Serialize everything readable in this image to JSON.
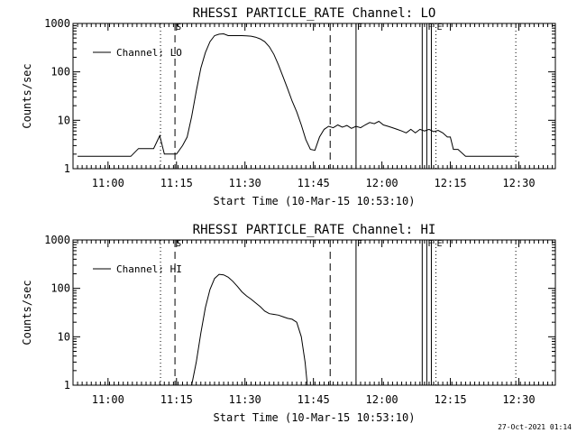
{
  "footer_timestamp": "27-Oct-2021 01:14",
  "chart_data": [
    {
      "type": "line",
      "title": "RHESSI PARTICLE_RATE Channel: LO",
      "xlabel": "Start Time (10-Mar-15 10:53:10)",
      "ylabel": "Counts/sec",
      "yscale": "log",
      "ylim": [
        1,
        1000
      ],
      "xlim_minutes": [
        -60,
        1430
      ],
      "x_unit": "seconds since 10:53:10",
      "x_ticks": [
        {
          "t": 400,
          "label": "11:00"
        },
        {
          "t": 1300,
          "label": "11:15"
        },
        {
          "t": 2200,
          "label": "11:30"
        },
        {
          "t": 3100,
          "label": "11:45"
        },
        {
          "t": 4000,
          "label": "12:00"
        },
        {
          "t": 4900,
          "label": "12:15"
        },
        {
          "t": 5800,
          "label": "12:30"
        }
      ],
      "y_ticks": [
        {
          "v": 1,
          "label": "1"
        },
        {
          "v": 10,
          "label": "10"
        },
        {
          "v": 100,
          "label": "100"
        },
        {
          "v": 1000,
          "label": "1000"
        }
      ],
      "legend": {
        "label": "Channel: LO",
        "position": "top-left"
      },
      "markers": [
        {
          "t": 1090,
          "style": "dotted",
          "label": ""
        },
        {
          "t": 1280,
          "style": "dashed",
          "label": "S"
        },
        {
          "t": 3320,
          "style": "dashed",
          "label": ""
        },
        {
          "t": 3660,
          "style": "solid",
          "label": "F"
        },
        {
          "t": 4530,
          "style": "solid",
          "label": ""
        },
        {
          "t": 4590,
          "style": "solid",
          "label": "F"
        },
        {
          "t": 4650,
          "style": "solid",
          "label": ""
        },
        {
          "t": 4710,
          "style": "dotted",
          "label": "E"
        },
        {
          "t": 5760,
          "style": "dotted",
          "label": ""
        }
      ],
      "series": [
        {
          "name": "Channel: LO",
          "points": [
            [
              0,
              1.8
            ],
            [
              100,
              1.8
            ],
            [
              200,
              1.8
            ],
            [
              300,
              1.8
            ],
            [
              400,
              1.8
            ],
            [
              500,
              1.8
            ],
            [
              600,
              1.8
            ],
            [
              700,
              1.8
            ],
            [
              800,
              2.6
            ],
            [
              900,
              2.6
            ],
            [
              1000,
              2.6
            ],
            [
              1080,
              4.8
            ],
            [
              1140,
              2.0
            ],
            [
              1200,
              2.0
            ],
            [
              1300,
              2.0
            ],
            [
              1380,
              3.0
            ],
            [
              1440,
              4.5
            ],
            [
              1500,
              12
            ],
            [
              1560,
              40
            ],
            [
              1620,
              120
            ],
            [
              1680,
              250
            ],
            [
              1740,
              420
            ],
            [
              1800,
              560
            ],
            [
              1860,
              600
            ],
            [
              1920,
              610
            ],
            [
              1980,
              560
            ],
            [
              2040,
              560
            ],
            [
              2100,
              560
            ],
            [
              2160,
              560
            ],
            [
              2220,
              555
            ],
            [
              2280,
              545
            ],
            [
              2340,
              520
            ],
            [
              2400,
              480
            ],
            [
              2460,
              420
            ],
            [
              2520,
              330
            ],
            [
              2580,
              230
            ],
            [
              2640,
              140
            ],
            [
              2700,
              80
            ],
            [
              2760,
              45
            ],
            [
              2820,
              25
            ],
            [
              2880,
              15
            ],
            [
              2940,
              8
            ],
            [
              3000,
              4
            ],
            [
              3060,
              2.5
            ],
            [
              3120,
              2.4
            ],
            [
              3180,
              4.5
            ],
            [
              3240,
              6.5
            ],
            [
              3300,
              7.5
            ],
            [
              3360,
              7.0
            ],
            [
              3420,
              8.0
            ],
            [
              3480,
              7.2
            ],
            [
              3540,
              7.8
            ],
            [
              3600,
              6.8
            ],
            [
              3660,
              7.5
            ],
            [
              3720,
              7.0
            ],
            [
              3780,
              8.0
            ],
            [
              3840,
              9.0
            ],
            [
              3900,
              8.5
            ],
            [
              3960,
              9.5
            ],
            [
              4020,
              8.0
            ],
            [
              4080,
              7.5
            ],
            [
              4140,
              7.0
            ],
            [
              4200,
              6.5
            ],
            [
              4260,
              6.0
            ],
            [
              4320,
              5.5
            ],
            [
              4380,
              6.5
            ],
            [
              4440,
              5.5
            ],
            [
              4500,
              6.5
            ],
            [
              4560,
              6.0
            ],
            [
              4620,
              6.5
            ],
            [
              4680,
              5.8
            ],
            [
              4740,
              6.2
            ],
            [
              4800,
              5.5
            ],
            [
              4860,
              4.5
            ],
            [
              4900,
              4.5
            ],
            [
              4940,
              2.5
            ],
            [
              5000,
              2.5
            ],
            [
              5100,
              1.8
            ],
            [
              5200,
              1.8
            ],
            [
              5300,
              1.8
            ],
            [
              5400,
              1.8
            ],
            [
              5500,
              1.8
            ],
            [
              5600,
              1.8
            ],
            [
              5700,
              1.8
            ],
            [
              5800,
              1.8
            ]
          ]
        }
      ]
    },
    {
      "type": "line",
      "title": "RHESSI PARTICLE_RATE Channel: HI",
      "xlabel": "Start Time (10-Mar-15 10:53:10)",
      "ylabel": "Counts/sec",
      "yscale": "log",
      "ylim": [
        1,
        1000
      ],
      "x_ticks": [
        {
          "t": 400,
          "label": "11:00"
        },
        {
          "t": 1300,
          "label": "11:15"
        },
        {
          "t": 2200,
          "label": "11:30"
        },
        {
          "t": 3100,
          "label": "11:45"
        },
        {
          "t": 4000,
          "label": "12:00"
        },
        {
          "t": 4900,
          "label": "12:15"
        },
        {
          "t": 5800,
          "label": "12:30"
        }
      ],
      "y_ticks": [
        {
          "v": 1,
          "label": "1"
        },
        {
          "v": 10,
          "label": "10"
        },
        {
          "v": 100,
          "label": "100"
        },
        {
          "v": 1000,
          "label": "1000"
        }
      ],
      "legend": {
        "label": "Channel: HI",
        "position": "top-left"
      },
      "markers": [
        {
          "t": 1090,
          "style": "dotted",
          "label": ""
        },
        {
          "t": 1280,
          "style": "dashed",
          "label": "S"
        },
        {
          "t": 3320,
          "style": "dashed",
          "label": ""
        },
        {
          "t": 3660,
          "style": "solid",
          "label": "F"
        },
        {
          "t": 4530,
          "style": "solid",
          "label": ""
        },
        {
          "t": 4590,
          "style": "solid",
          "label": "F"
        },
        {
          "t": 4650,
          "style": "solid",
          "label": ""
        },
        {
          "t": 4710,
          "style": "dotted",
          "label": "E"
        },
        {
          "t": 5760,
          "style": "dotted",
          "label": ""
        }
      ],
      "series": [
        {
          "name": "Channel: HI",
          "points": [
            [
              1500,
              1.0
            ],
            [
              1560,
              3
            ],
            [
              1620,
              12
            ],
            [
              1680,
              40
            ],
            [
              1740,
              95
            ],
            [
              1800,
              160
            ],
            [
              1860,
              195
            ],
            [
              1920,
              190
            ],
            [
              1980,
              170
            ],
            [
              2040,
              140
            ],
            [
              2100,
              110
            ],
            [
              2160,
              85
            ],
            [
              2220,
              70
            ],
            [
              2280,
              60
            ],
            [
              2340,
              50
            ],
            [
              2400,
              42
            ],
            [
              2460,
              34
            ],
            [
              2520,
              30
            ],
            [
              2580,
              29
            ],
            [
              2640,
              28
            ],
            [
              2700,
              26
            ],
            [
              2760,
              24
            ],
            [
              2820,
              23
            ],
            [
              2880,
              20
            ],
            [
              2940,
              10
            ],
            [
              2990,
              3
            ],
            [
              3020,
              1.0
            ]
          ]
        }
      ]
    }
  ]
}
